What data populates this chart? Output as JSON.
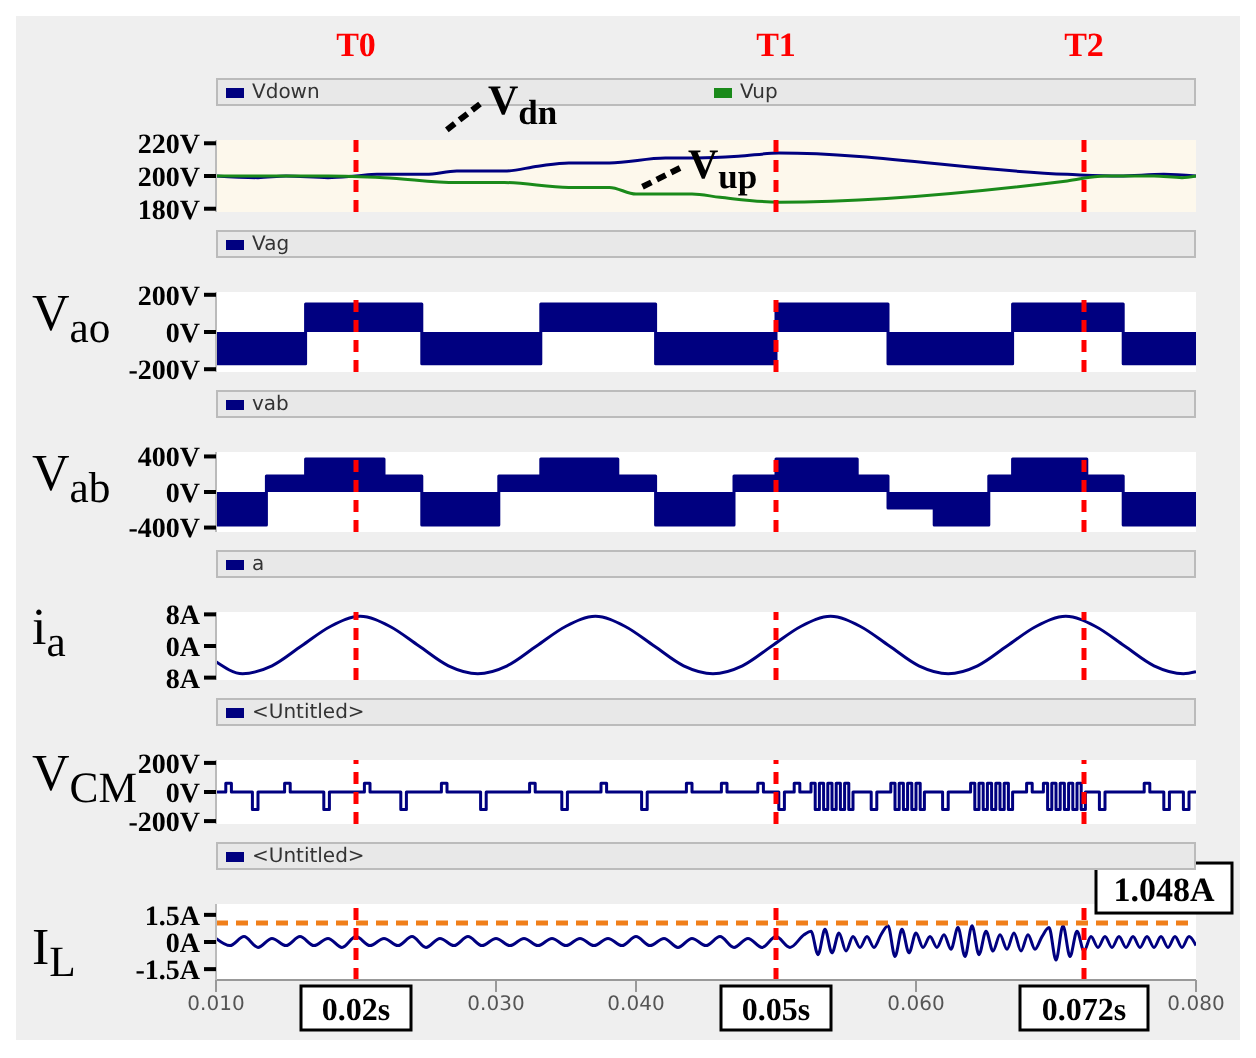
{
  "chart_data": [
    {
      "type": "line",
      "xlim": [
        0.01,
        0.08
      ],
      "ylim": [
        178,
        222
      ],
      "yticks": [
        {
          "value": 220,
          "label": "220V"
        },
        {
          "value": 200,
          "label": "200V"
        },
        {
          "value": 180,
          "label": "180V"
        }
      ],
      "tick_labels": "y",
      "legend": "top left",
      "series": [
        {
          "name": "Vdown",
          "color": "#000080",
          "x": [
            0.01,
            0.013,
            0.015,
            0.018,
            0.02,
            0.0215,
            0.025,
            0.0272,
            0.0306,
            0.033,
            0.0352,
            0.0381,
            0.0421,
            0.0444,
            0.0473,
            0.0502,
            0.0708,
            0.0745,
            0.0777,
            0.08
          ],
          "values": [
            200,
            199,
            200,
            199,
            200,
            201,
            201,
            203,
            203,
            206,
            208,
            208,
            211,
            211,
            212,
            214,
            201,
            200,
            201,
            200
          ]
        },
        {
          "name": "Vup",
          "color": "#1a8a1a",
          "x": [
            0.01,
            0.018,
            0.022,
            0.0272,
            0.0306,
            0.0352,
            0.0381,
            0.04,
            0.044,
            0.046,
            0.0502,
            0.0708,
            0.0735,
            0.077,
            0.079,
            0.08
          ],
          "values": [
            200,
            200,
            199,
            196,
            196,
            193,
            193,
            189,
            189,
            187,
            184,
            197,
            200,
            200,
            199,
            200
          ]
        }
      ],
      "ref_lines": [
        {
          "axis": "x",
          "value": 0.02,
          "label": "T0",
          "color": "#ff0000",
          "line_style": "dashed"
        },
        {
          "axis": "x",
          "value": 0.05,
          "label": "T1",
          "color": "#ff0000",
          "line_style": "dashed"
        },
        {
          "axis": "x",
          "value": 0.072,
          "label": "T2",
          "color": "#ff0000",
          "line_style": "dashed"
        }
      ],
      "annotations": [
        "V$_{dn}$",
        "V$_{up}$"
      ]
    },
    {
      "type": "area",
      "ylabel": "V$_{ao}$",
      "xlim": [
        0.01,
        0.08
      ],
      "ylim": [
        -215,
        215
      ],
      "yticks": [
        {
          "value": 200,
          "label": "200V"
        },
        {
          "value": 0,
          "label": "0V"
        },
        {
          "value": -200,
          "label": "-200V"
        }
      ],
      "tick_labels": "y",
      "legend": "top left",
      "series": [
        {
          "name": "Vag",
          "color": "#000080",
          "x": [
            0.01,
            0.0164,
            0.0247,
            0.0332,
            0.0414,
            0.05,
            0.058,
            0.0669,
            0.0748,
            0.08
          ],
          "values": [
            -170,
            150,
            -170,
            150,
            -170,
            150,
            -170,
            150,
            -170,
            -170
          ]
        }
      ],
      "ref_lines": [
        {
          "axis": "x",
          "value": 0.02,
          "color": "#ff0000",
          "line_style": "dashed"
        },
        {
          "axis": "x",
          "value": 0.05,
          "color": "#ff0000",
          "line_style": "dashed"
        },
        {
          "axis": "x",
          "value": 0.072,
          "color": "#ff0000",
          "line_style": "dashed"
        }
      ]
    },
    {
      "type": "area",
      "ylabel": "V$_{ab}$",
      "xlim": [
        0.01,
        0.08
      ],
      "ylim": [
        -450,
        450
      ],
      "yticks": [
        {
          "value": 400,
          "label": "400V"
        },
        {
          "value": 0,
          "label": "0V"
        },
        {
          "value": -400,
          "label": "-400V"
        }
      ],
      "tick_labels": "y",
      "legend": "top left",
      "series": [
        {
          "name": "vab",
          "color": "#000080",
          "x": [
            0.01,
            0.0136,
            0.0164,
            0.022,
            0.0247,
            0.0302,
            0.0332,
            0.0387,
            0.0414,
            0.047,
            0.05,
            0.0558,
            0.058,
            0.0613,
            0.0652,
            0.0669,
            0.0722,
            0.0748,
            0.08
          ],
          "values": [
            -370,
            180,
            370,
            180,
            -370,
            180,
            370,
            180,
            -370,
            180,
            370,
            180,
            -180,
            -370,
            180,
            370,
            180,
            -370,
            -370
          ]
        }
      ],
      "ref_lines": [
        {
          "axis": "x",
          "value": 0.02,
          "color": "#ff0000",
          "line_style": "dashed"
        },
        {
          "axis": "x",
          "value": 0.05,
          "color": "#ff0000",
          "line_style": "dashed"
        },
        {
          "axis": "x",
          "value": 0.072,
          "color": "#ff0000",
          "line_style": "dashed"
        }
      ]
    },
    {
      "type": "line",
      "ylabel": "i$_{a}$",
      "xlim": [
        0.01,
        0.08
      ],
      "ylim": [
        -8.6,
        8.6
      ],
      "yticks": [
        {
          "value": 8,
          "label": "8A"
        },
        {
          "value": 0,
          "label": "0A"
        },
        {
          "value": -8,
          "label": "8A"
        }
      ],
      "tick_labels": "y",
      "legend": "top left",
      "series": [
        {
          "name": "a",
          "color": "#000080",
          "x": [
            0.01,
            0.0119,
            0.014,
            0.0161,
            0.0182,
            0.0203,
            0.0224,
            0.0245,
            0.0266,
            0.0287,
            0.0308,
            0.0329,
            0.035,
            0.0371,
            0.0392,
            0.0413,
            0.0434,
            0.0455,
            0.0476,
            0.0497,
            0.0518,
            0.0539,
            0.056,
            0.0581,
            0.0602,
            0.0623,
            0.0644,
            0.0665,
            0.0686,
            0.0707,
            0.0728,
            0.0749,
            0.077,
            0.0791,
            0.08
          ],
          "values": [
            -4,
            -7,
            -5,
            0,
            5,
            7.5,
            5,
            0,
            -5,
            -7,
            -5,
            0,
            5,
            7.5,
            5,
            0,
            -5,
            -7,
            -5,
            0,
            5,
            7.5,
            5,
            0,
            -5,
            -7,
            -5,
            0,
            5,
            7.5,
            5,
            0,
            -5,
            -7,
            -6.5
          ]
        }
      ],
      "ref_lines": [
        {
          "axis": "x",
          "value": 0.02,
          "color": "#ff0000",
          "line_style": "dashed"
        },
        {
          "axis": "x",
          "value": 0.05,
          "color": "#ff0000",
          "line_style": "dashed"
        },
        {
          "axis": "x",
          "value": 0.072,
          "color": "#ff0000",
          "line_style": "dashed"
        }
      ]
    },
    {
      "type": "step",
      "ylabel": "V$_{CM}$",
      "xlim": [
        0.01,
        0.08
      ],
      "ylim": [
        -220,
        220
      ],
      "yticks": [
        {
          "value": 200,
          "label": "200V"
        },
        {
          "value": 0,
          "label": "0V"
        },
        {
          "value": -200,
          "label": "-200V"
        }
      ],
      "tick_labels": "y",
      "legend": "top left",
      "series": [
        {
          "name": "<Untitled>",
          "color": "#000080",
          "x": [
            0.01,
            0.0107,
            0.0111,
            0.0126,
            0.013,
            0.0149,
            0.0153,
            0.0177,
            0.0181,
            0.0206,
            0.021,
            0.0232,
            0.0236,
            0.0261,
            0.0265,
            0.0289,
            0.0293,
            0.0324,
            0.0328,
            0.0347,
            0.0351,
            0.0375,
            0.0379,
            0.0404,
            0.0408,
            0.0436,
            0.044,
            0.0461,
            0.0465,
            0.0487,
            0.0491,
            0.0502,
            0.0506,
            0.0513,
            0.0517,
            0.0525,
            0.0528,
            0.0531,
            0.0534,
            0.0537,
            0.054,
            0.0543,
            0.0546,
            0.0549,
            0.0552,
            0.0555,
            0.0568,
            0.0572,
            0.0582,
            0.0585,
            0.0588,
            0.0591,
            0.0594,
            0.0597,
            0.06,
            0.0603,
            0.0606,
            0.0619,
            0.0623,
            0.0639,
            0.0642,
            0.0645,
            0.0648,
            0.0651,
            0.0654,
            0.0657,
            0.066,
            0.0663,
            0.0666,
            0.0669,
            0.0679,
            0.0683,
            0.0691,
            0.0694,
            0.0697,
            0.07,
            0.0703,
            0.0706,
            0.0709,
            0.0712,
            0.0715,
            0.0718,
            0.0721,
            0.0731,
            0.0735,
            0.0763,
            0.0767,
            0.0777,
            0.0781,
            0.0791,
            0.0795,
            0.08
          ],
          "values": [
            0,
            60,
            0,
            -120,
            0,
            60,
            0,
            -120,
            0,
            60,
            0,
            -120,
            0,
            60,
            0,
            -120,
            0,
            60,
            0,
            -120,
            0,
            60,
            0,
            -120,
            0,
            60,
            0,
            60,
            0,
            60,
            0,
            -120,
            0,
            60,
            0,
            60,
            -120,
            60,
            -120,
            60,
            -120,
            60,
            -120,
            60,
            -120,
            0,
            -120,
            0,
            60,
            -120,
            60,
            -120,
            60,
            -120,
            60,
            -120,
            0,
            -120,
            0,
            60,
            -120,
            60,
            -120,
            60,
            -120,
            60,
            -120,
            60,
            -120,
            0,
            60,
            0,
            60,
            -120,
            60,
            -120,
            60,
            -120,
            60,
            -120,
            60,
            -120,
            0,
            -120,
            0,
            60,
            0,
            -120,
            0,
            -120,
            0,
            0
          ]
        }
      ],
      "ref_lines": [
        {
          "axis": "x",
          "value": 0.02,
          "color": "#ff0000",
          "line_style": "dashed"
        },
        {
          "axis": "x",
          "value": 0.05,
          "color": "#ff0000",
          "line_style": "dashed"
        },
        {
          "axis": "x",
          "value": 0.072,
          "color": "#ff0000",
          "line_style": "dashed"
        }
      ]
    },
    {
      "type": "line",
      "ylabel": "I$_{L}$",
      "xlim": [
        0.01,
        0.08
      ],
      "ylim": [
        -2.1,
        2.1
      ],
      "yticks": [
        {
          "value": 1.5,
          "label": "1.5A"
        },
        {
          "value": 0,
          "label": "0A"
        },
        {
          "value": -1.5,
          "label": "-1.5A"
        }
      ],
      "xticks": [
        {
          "value": 0.01,
          "label": "0.010"
        },
        {
          "value": 0.03,
          "label": "0.030"
        },
        {
          "value": 0.04,
          "label": "0.040"
        },
        {
          "value": 0.06,
          "label": "0.060"
        },
        {
          "value": 0.08,
          "label": "0.080"
        }
      ],
      "legend": "top left",
      "series": [
        {
          "name": "<Untitled>",
          "color": "#000080",
          "x": [
            0.01,
            0.011,
            0.012,
            0.013,
            0.014,
            0.015,
            0.016,
            0.017,
            0.018,
            0.019,
            0.02,
            0.021,
            0.022,
            0.023,
            0.024,
            0.025,
            0.026,
            0.027,
            0.028,
            0.029,
            0.03,
            0.031,
            0.032,
            0.033,
            0.034,
            0.035,
            0.036,
            0.037,
            0.038,
            0.039,
            0.04,
            0.041,
            0.042,
            0.043,
            0.044,
            0.045,
            0.046,
            0.047,
            0.048,
            0.049,
            0.05,
            0.051,
            0.052,
            0.0525,
            0.053,
            0.0535,
            0.054,
            0.0545,
            0.055,
            0.0555,
            0.056,
            0.0565,
            0.057,
            0.0575,
            0.058,
            0.0585,
            0.059,
            0.0595,
            0.06,
            0.0605,
            0.061,
            0.0615,
            0.062,
            0.0625,
            0.063,
            0.0635,
            0.064,
            0.0645,
            0.065,
            0.0655,
            0.066,
            0.0665,
            0.067,
            0.0675,
            0.068,
            0.0685,
            0.069,
            0.0695,
            0.07,
            0.0705,
            0.071,
            0.0715,
            0.072,
            0.0725,
            0.073,
            0.0735,
            0.074,
            0.0745,
            0.075,
            0.0755,
            0.076,
            0.0765,
            0.077,
            0.0775,
            0.078,
            0.0785,
            0.079,
            0.0795,
            0.08
          ],
          "values": [
            0.2,
            -0.2,
            0.3,
            -0.3,
            0.2,
            -0.2,
            0.3,
            -0.2,
            0.2,
            -0.3,
            0.3,
            -0.2,
            0.2,
            -0.2,
            0.3,
            -0.3,
            0.2,
            -0.2,
            0.3,
            -0.2,
            0.2,
            -0.2,
            0.2,
            -0.2,
            0.2,
            -0.2,
            0.2,
            -0.2,
            0.2,
            -0.2,
            0.3,
            -0.2,
            0.2,
            -0.3,
            0.2,
            -0.2,
            0.3,
            -0.3,
            0.2,
            -0.3,
            0.3,
            -0.3,
            0.4,
            0.6,
            -0.7,
            0.7,
            -0.6,
            0.5,
            -0.5,
            0.3,
            -0.3,
            0.3,
            -0.3,
            0.4,
            0.9,
            -0.8,
            0.7,
            -0.6,
            0.5,
            -0.3,
            0.3,
            -0.3,
            0.4,
            -0.4,
            0.8,
            -0.8,
            0.9,
            -0.7,
            0.6,
            -0.5,
            0.4,
            -0.4,
            0.5,
            -0.5,
            0.4,
            -0.4,
            0.3,
            0.8,
            -1.0,
            0.9,
            -0.8,
            0.6,
            -0.5,
            0.3,
            -0.3,
            0.3,
            -0.3,
            0.3,
            -0.3,
            0.3,
            -0.3,
            0.3,
            -0.3,
            0.3,
            -0.3,
            0.3,
            -0.3,
            0.3,
            -0.2
          ]
        }
      ],
      "ref_lines": [
        {
          "axis": "x",
          "value": 0.02,
          "label": "0.02s",
          "color": "#ff0000",
          "line_style": "dashed"
        },
        {
          "axis": "x",
          "value": 0.05,
          "label": "0.05s",
          "color": "#ff0000",
          "line_style": "dashed"
        },
        {
          "axis": "x",
          "value": 0.072,
          "label": "0.072s",
          "color": "#ff0000",
          "line_style": "dashed"
        },
        {
          "axis": "y",
          "value": 1.048,
          "label": "1.048A",
          "color": "#f07f1a",
          "line_style": "dashed"
        }
      ]
    }
  ]
}
